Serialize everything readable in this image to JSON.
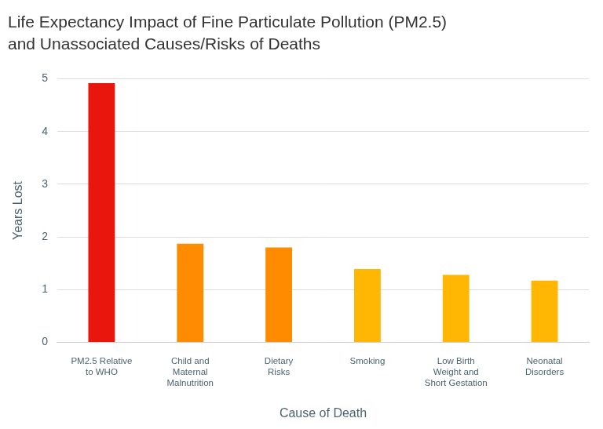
{
  "chart_data": {
    "type": "bar",
    "title": [
      "Life Expectancy Impact of Fine Particulate Pollution (PM2.5)",
      "and Unassociated Causes/Risks of Deaths"
    ],
    "x_label": "Cause of Death",
    "y_label": "Years Lost",
    "categories": [
      [
        "PM2.5 Relative",
        "to WHO"
      ],
      [
        "Child and",
        "Maternal",
        "Malnutrition"
      ],
      [
        "Dietary",
        "Risks"
      ],
      [
        "Smoking"
      ],
      [
        "Low Birth",
        "Weight and",
        "Short Gestation"
      ],
      [
        "Neonatal",
        "Disorders"
      ]
    ],
    "values": [
      4.92,
      1.87,
      1.8,
      1.39,
      1.28,
      1.17
    ],
    "colors": [
      "#e8160c",
      "#ff8c00",
      "#ff8c00",
      "#ffb703",
      "#ffb703",
      "#ffb703"
    ],
    "ylim": [
      0,
      5
    ],
    "yticks": [
      0,
      1,
      2,
      3,
      4,
      5
    ],
    "grid": true
  }
}
